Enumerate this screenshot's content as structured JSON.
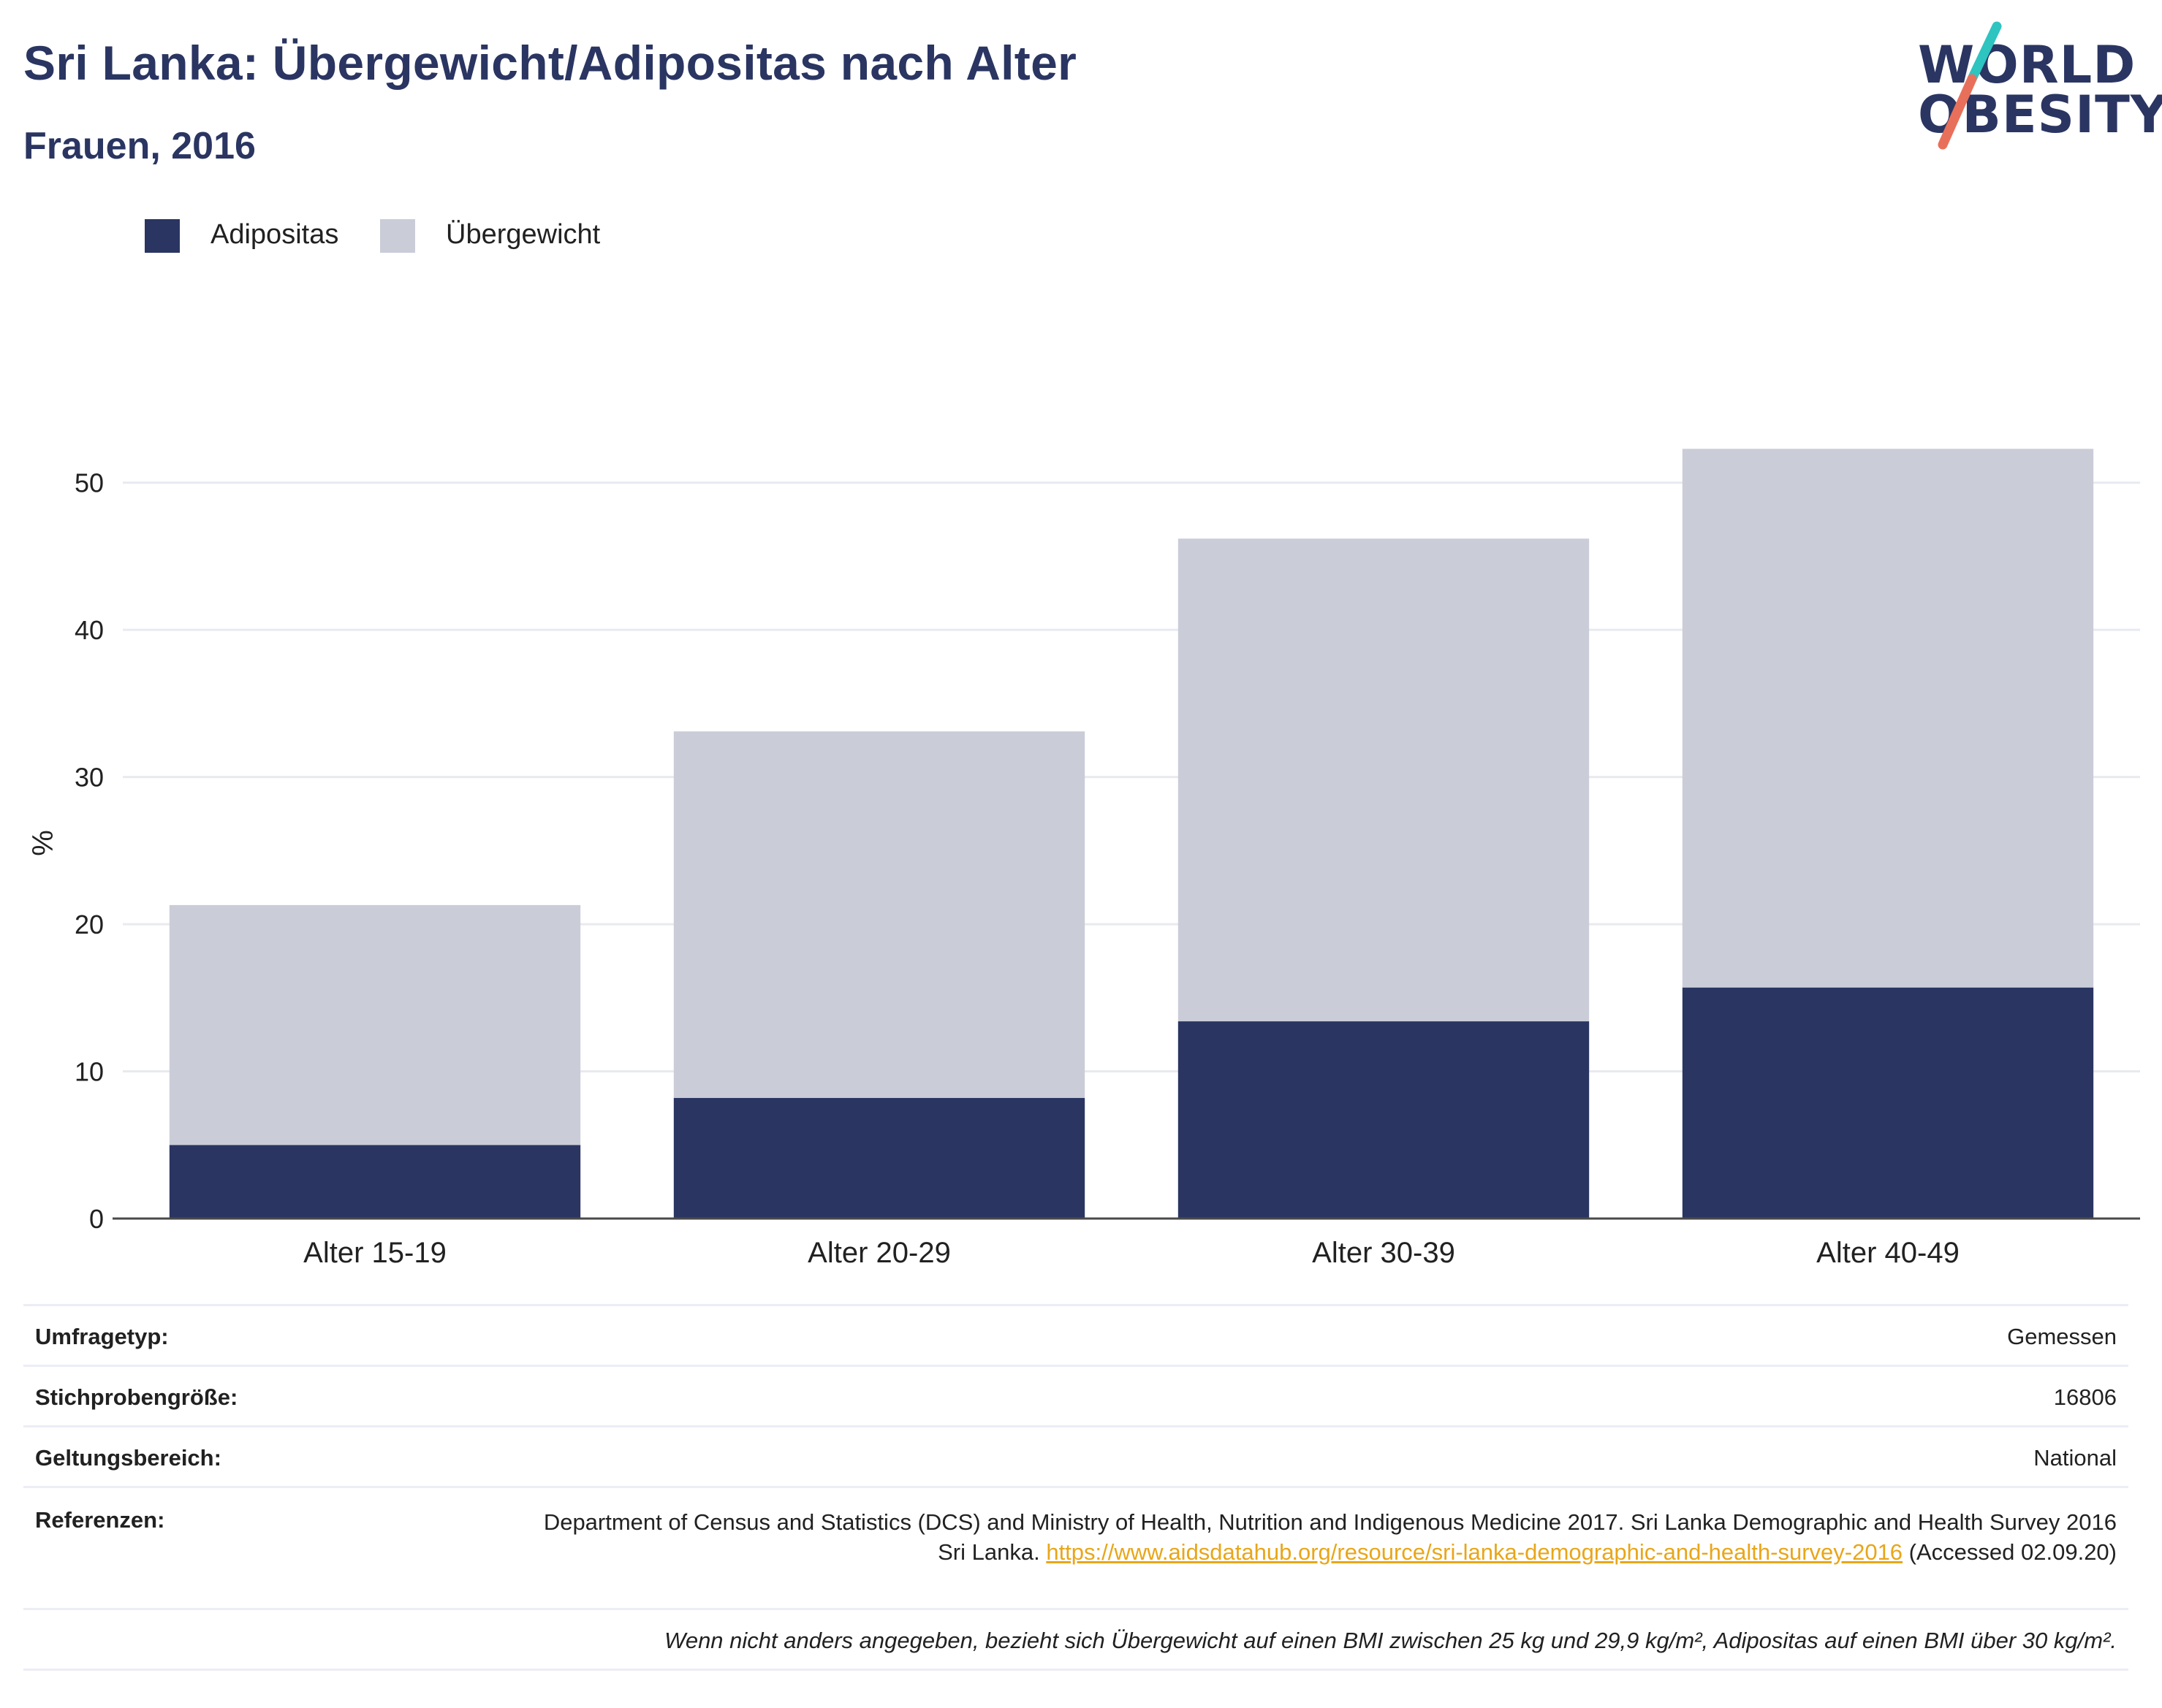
{
  "title": "Sri Lanka: Übergewicht/Adipositas nach Alter",
  "subtitle": "Frauen, 2016",
  "logo": {
    "line1": "WORLD",
    "line2": "OBESITY",
    "colors": [
      "#2ec4c0",
      "#e8705a"
    ]
  },
  "legend": [
    {
      "label": "Adipositas",
      "color": "#2a3562"
    },
    {
      "label": "Übergewicht",
      "color": "#cacdd8"
    }
  ],
  "chart_data": {
    "type": "bar",
    "stacked": true,
    "categories": [
      "Alter 15-19",
      "Alter 20-29",
      "Alter 30-39",
      "Alter 40-49"
    ],
    "series": [
      {
        "name": "Adipositas",
        "values": [
          5.0,
          8.2,
          13.4,
          15.7
        ],
        "color": "#2a3562"
      },
      {
        "name": "Übergewicht",
        "values": [
          16.3,
          24.9,
          32.8,
          36.6
        ],
        "color": "#cacdd8"
      }
    ],
    "ylabel": "%",
    "ylim": [
      0,
      55
    ],
    "yticks": [
      0,
      10,
      20,
      30,
      40,
      50
    ],
    "grid": true,
    "legend_position": "top-left"
  },
  "info": {
    "survey_type": {
      "label": "Umfragetyp:",
      "value": "Gemessen"
    },
    "sample_size": {
      "label": "Stichprobengröße:",
      "value": "16806"
    },
    "scope": {
      "label": "Geltungsbereich:",
      "value": "National"
    },
    "references": {
      "label": "Referenzen:",
      "text": "Department of Census and Statistics (DCS) and Ministry of Health, Nutrition and Indigenous Medicine 2017. Sri Lanka Demographic and Health Survey 2016 Sri Lanka.",
      "link": "https://www.aidsdatahub.org/resource/sri-lanka-demographic-and-health-survey-2016",
      "accessed": "(Accessed 02.09.20)"
    },
    "note": "Wenn nicht anders angegeben, bezieht sich Übergewicht auf einen BMI zwischen 25 kg und 29,9 kg/m², Adipositas auf einen BMI über 30 kg/m²."
  }
}
